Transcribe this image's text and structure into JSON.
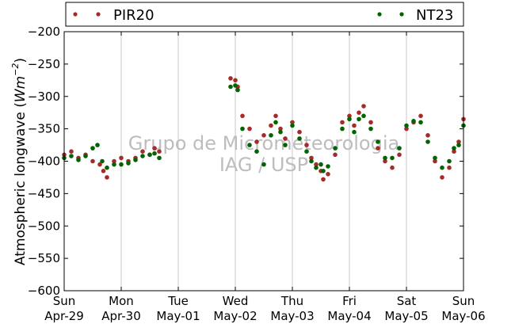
{
  "chart_data": {
    "type": "scatter",
    "ylabel": "Atmospheric longwave (Wm⁻²)",
    "ylabel_plain": "Atmospheric longwave (",
    "ylabel_math_base": "Wm",
    "ylabel_math_exp": "−2",
    "ylabel_close": ")",
    "ylim": [
      -600,
      -200
    ],
    "yticks": [
      -600,
      -550,
      -500,
      -450,
      -400,
      -350,
      -300,
      -250,
      -200
    ],
    "ytick_labels": [
      "−600",
      "−550",
      "−500",
      "−450",
      "−400",
      "−350",
      "−300",
      "−250",
      "−200"
    ],
    "xlim": [
      "2012-04-29",
      "2012-05-06"
    ],
    "xticks": [
      {
        "date": "2012-04-29",
        "day": "Sun",
        "label": "Apr-29"
      },
      {
        "date": "2012-04-30",
        "day": "Mon",
        "label": "Apr-30"
      },
      {
        "date": "2012-05-01",
        "day": "Tue",
        "label": "May-01"
      },
      {
        "date": "2012-05-02",
        "day": "Wed",
        "label": "May-02"
      },
      {
        "date": "2012-05-03",
        "day": "Thu",
        "label": "May-03"
      },
      {
        "date": "2012-05-04",
        "day": "Fri",
        "label": "May-04"
      },
      {
        "date": "2012-05-05",
        "day": "Sat",
        "label": "May-05"
      },
      {
        "date": "2012-05-06",
        "day": "Sun",
        "label": "May-06"
      }
    ],
    "grid": "vertical",
    "legend_placement": "top",
    "watermark": [
      "Grupo de Micrometeorologia",
      "IAG / USP"
    ],
    "series": [
      {
        "name": "PIR20",
        "color": "#a52a2a",
        "points": [
          [
            "2012-04-29 00:00",
            -390
          ],
          [
            "2012-04-29 03:00",
            -385
          ],
          [
            "2012-04-29 06:00",
            -395
          ],
          [
            "2012-04-29 09:00",
            -390
          ],
          [
            "2012-04-29 12:00",
            -400
          ],
          [
            "2012-04-29 15:00",
            -405
          ],
          [
            "2012-04-29 16:30",
            -415
          ],
          [
            "2012-04-29 18:00",
            -425
          ],
          [
            "2012-04-29 21:00",
            -400
          ],
          [
            "2012-04-30 00:00",
            -395
          ],
          [
            "2012-04-30 03:00",
            -400
          ],
          [
            "2012-04-30 06:00",
            -395
          ],
          [
            "2012-04-30 09:00",
            -385
          ],
          [
            "2012-04-30 12:00",
            -390
          ],
          [
            "2012-04-30 14:00",
            -380
          ],
          [
            "2012-04-30 16:00",
            -385
          ],
          [
            "2012-05-01 22:00",
            -272
          ],
          [
            "2012-05-02 00:00",
            -275
          ],
          [
            "2012-05-02 01:00",
            -285
          ],
          [
            "2012-05-02 03:00",
            -330
          ],
          [
            "2012-05-02 06:00",
            -350
          ],
          [
            "2012-05-02 09:00",
            -370
          ],
          [
            "2012-05-02 12:00",
            -360
          ],
          [
            "2012-05-02 15:00",
            -345
          ],
          [
            "2012-05-02 17:00",
            -330
          ],
          [
            "2012-05-02 19:00",
            -350
          ],
          [
            "2012-05-02 21:00",
            -365
          ],
          [
            "2012-05-03 00:00",
            -340
          ],
          [
            "2012-05-03 03:00",
            -355
          ],
          [
            "2012-05-03 06:00",
            -375
          ],
          [
            "2012-05-03 08:00",
            -395
          ],
          [
            "2012-05-03 10:00",
            -405
          ],
          [
            "2012-05-03 12:00",
            -415
          ],
          [
            "2012-05-03 13:00",
            -428
          ],
          [
            "2012-05-03 15:00",
            -420
          ],
          [
            "2012-05-03 18:00",
            -390
          ],
          [
            "2012-05-03 21:00",
            -340
          ],
          [
            "2012-05-04 00:00",
            -330
          ],
          [
            "2012-05-04 02:00",
            -345
          ],
          [
            "2012-05-04 04:00",
            -325
          ],
          [
            "2012-05-04 06:00",
            -315
          ],
          [
            "2012-05-04 09:00",
            -340
          ],
          [
            "2012-05-04 12:00",
            -380
          ],
          [
            "2012-05-04 15:00",
            -400
          ],
          [
            "2012-05-04 18:00",
            -410
          ],
          [
            "2012-05-04 21:00",
            -390
          ],
          [
            "2012-05-05 00:00",
            -350
          ],
          [
            "2012-05-05 03:00",
            -340
          ],
          [
            "2012-05-05 06:00",
            -330
          ],
          [
            "2012-05-05 09:00",
            -360
          ],
          [
            "2012-05-05 12:00",
            -400
          ],
          [
            "2012-05-05 15:00",
            -425
          ],
          [
            "2012-05-05 18:00",
            -410
          ],
          [
            "2012-05-05 20:00",
            -385
          ],
          [
            "2012-05-05 22:00",
            -370
          ],
          [
            "2012-05-06 00:00",
            -335
          ]
        ]
      },
      {
        "name": "NT23",
        "color": "#006400",
        "points": [
          [
            "2012-04-29 00:00",
            -395
          ],
          [
            "2012-04-29 03:00",
            -392
          ],
          [
            "2012-04-29 06:00",
            -398
          ],
          [
            "2012-04-29 09:00",
            -392
          ],
          [
            "2012-04-29 12:00",
            -380
          ],
          [
            "2012-04-29 14:00",
            -375
          ],
          [
            "2012-04-29 16:00",
            -400
          ],
          [
            "2012-04-29 18:00",
            -410
          ],
          [
            "2012-04-29 21:00",
            -405
          ],
          [
            "2012-04-30 00:00",
            -405
          ],
          [
            "2012-04-30 03:00",
            -403
          ],
          [
            "2012-04-30 06:00",
            -398
          ],
          [
            "2012-04-30 09:00",
            -392
          ],
          [
            "2012-04-30 12:00",
            -390
          ],
          [
            "2012-04-30 14:00",
            -388
          ],
          [
            "2012-04-30 16:00",
            -395
          ],
          [
            "2012-05-01 22:00",
            -285
          ],
          [
            "2012-05-02 00:00",
            -283
          ],
          [
            "2012-05-02 01:00",
            -290
          ],
          [
            "2012-05-02 03:00",
            -350
          ],
          [
            "2012-05-02 06:00",
            -375
          ],
          [
            "2012-05-02 09:00",
            -385
          ],
          [
            "2012-05-02 12:00",
            -405
          ],
          [
            "2012-05-02 15:00",
            -360
          ],
          [
            "2012-05-02 17:00",
            -340
          ],
          [
            "2012-05-02 19:00",
            -355
          ],
          [
            "2012-05-02 21:00",
            -375
          ],
          [
            "2012-05-03 00:00",
            -345
          ],
          [
            "2012-05-03 03:00",
            -365
          ],
          [
            "2012-05-03 06:00",
            -385
          ],
          [
            "2012-05-03 08:00",
            -400
          ],
          [
            "2012-05-03 10:00",
            -410
          ],
          [
            "2012-05-03 12:00",
            -405
          ],
          [
            "2012-05-03 13:00",
            -415
          ],
          [
            "2012-05-03 15:00",
            -408
          ],
          [
            "2012-05-03 18:00",
            -380
          ],
          [
            "2012-05-03 21:00",
            -350
          ],
          [
            "2012-05-04 00:00",
            -335
          ],
          [
            "2012-05-04 02:00",
            -355
          ],
          [
            "2012-05-04 04:00",
            -335
          ],
          [
            "2012-05-04 06:00",
            -330
          ],
          [
            "2012-05-04 09:00",
            -350
          ],
          [
            "2012-05-04 12:00",
            -370
          ],
          [
            "2012-05-04 15:00",
            -395
          ],
          [
            "2012-05-04 18:00",
            -395
          ],
          [
            "2012-05-04 21:00",
            -380
          ],
          [
            "2012-05-05 00:00",
            -345
          ],
          [
            "2012-05-05 03:00",
            -338
          ],
          [
            "2012-05-05 06:00",
            -340
          ],
          [
            "2012-05-05 09:00",
            -370
          ],
          [
            "2012-05-05 12:00",
            -395
          ],
          [
            "2012-05-05 15:00",
            -410
          ],
          [
            "2012-05-05 18:00",
            -400
          ],
          [
            "2012-05-05 20:00",
            -380
          ],
          [
            "2012-05-05 22:00",
            -375
          ],
          [
            "2012-05-06 00:00",
            -345
          ]
        ]
      }
    ]
  }
}
